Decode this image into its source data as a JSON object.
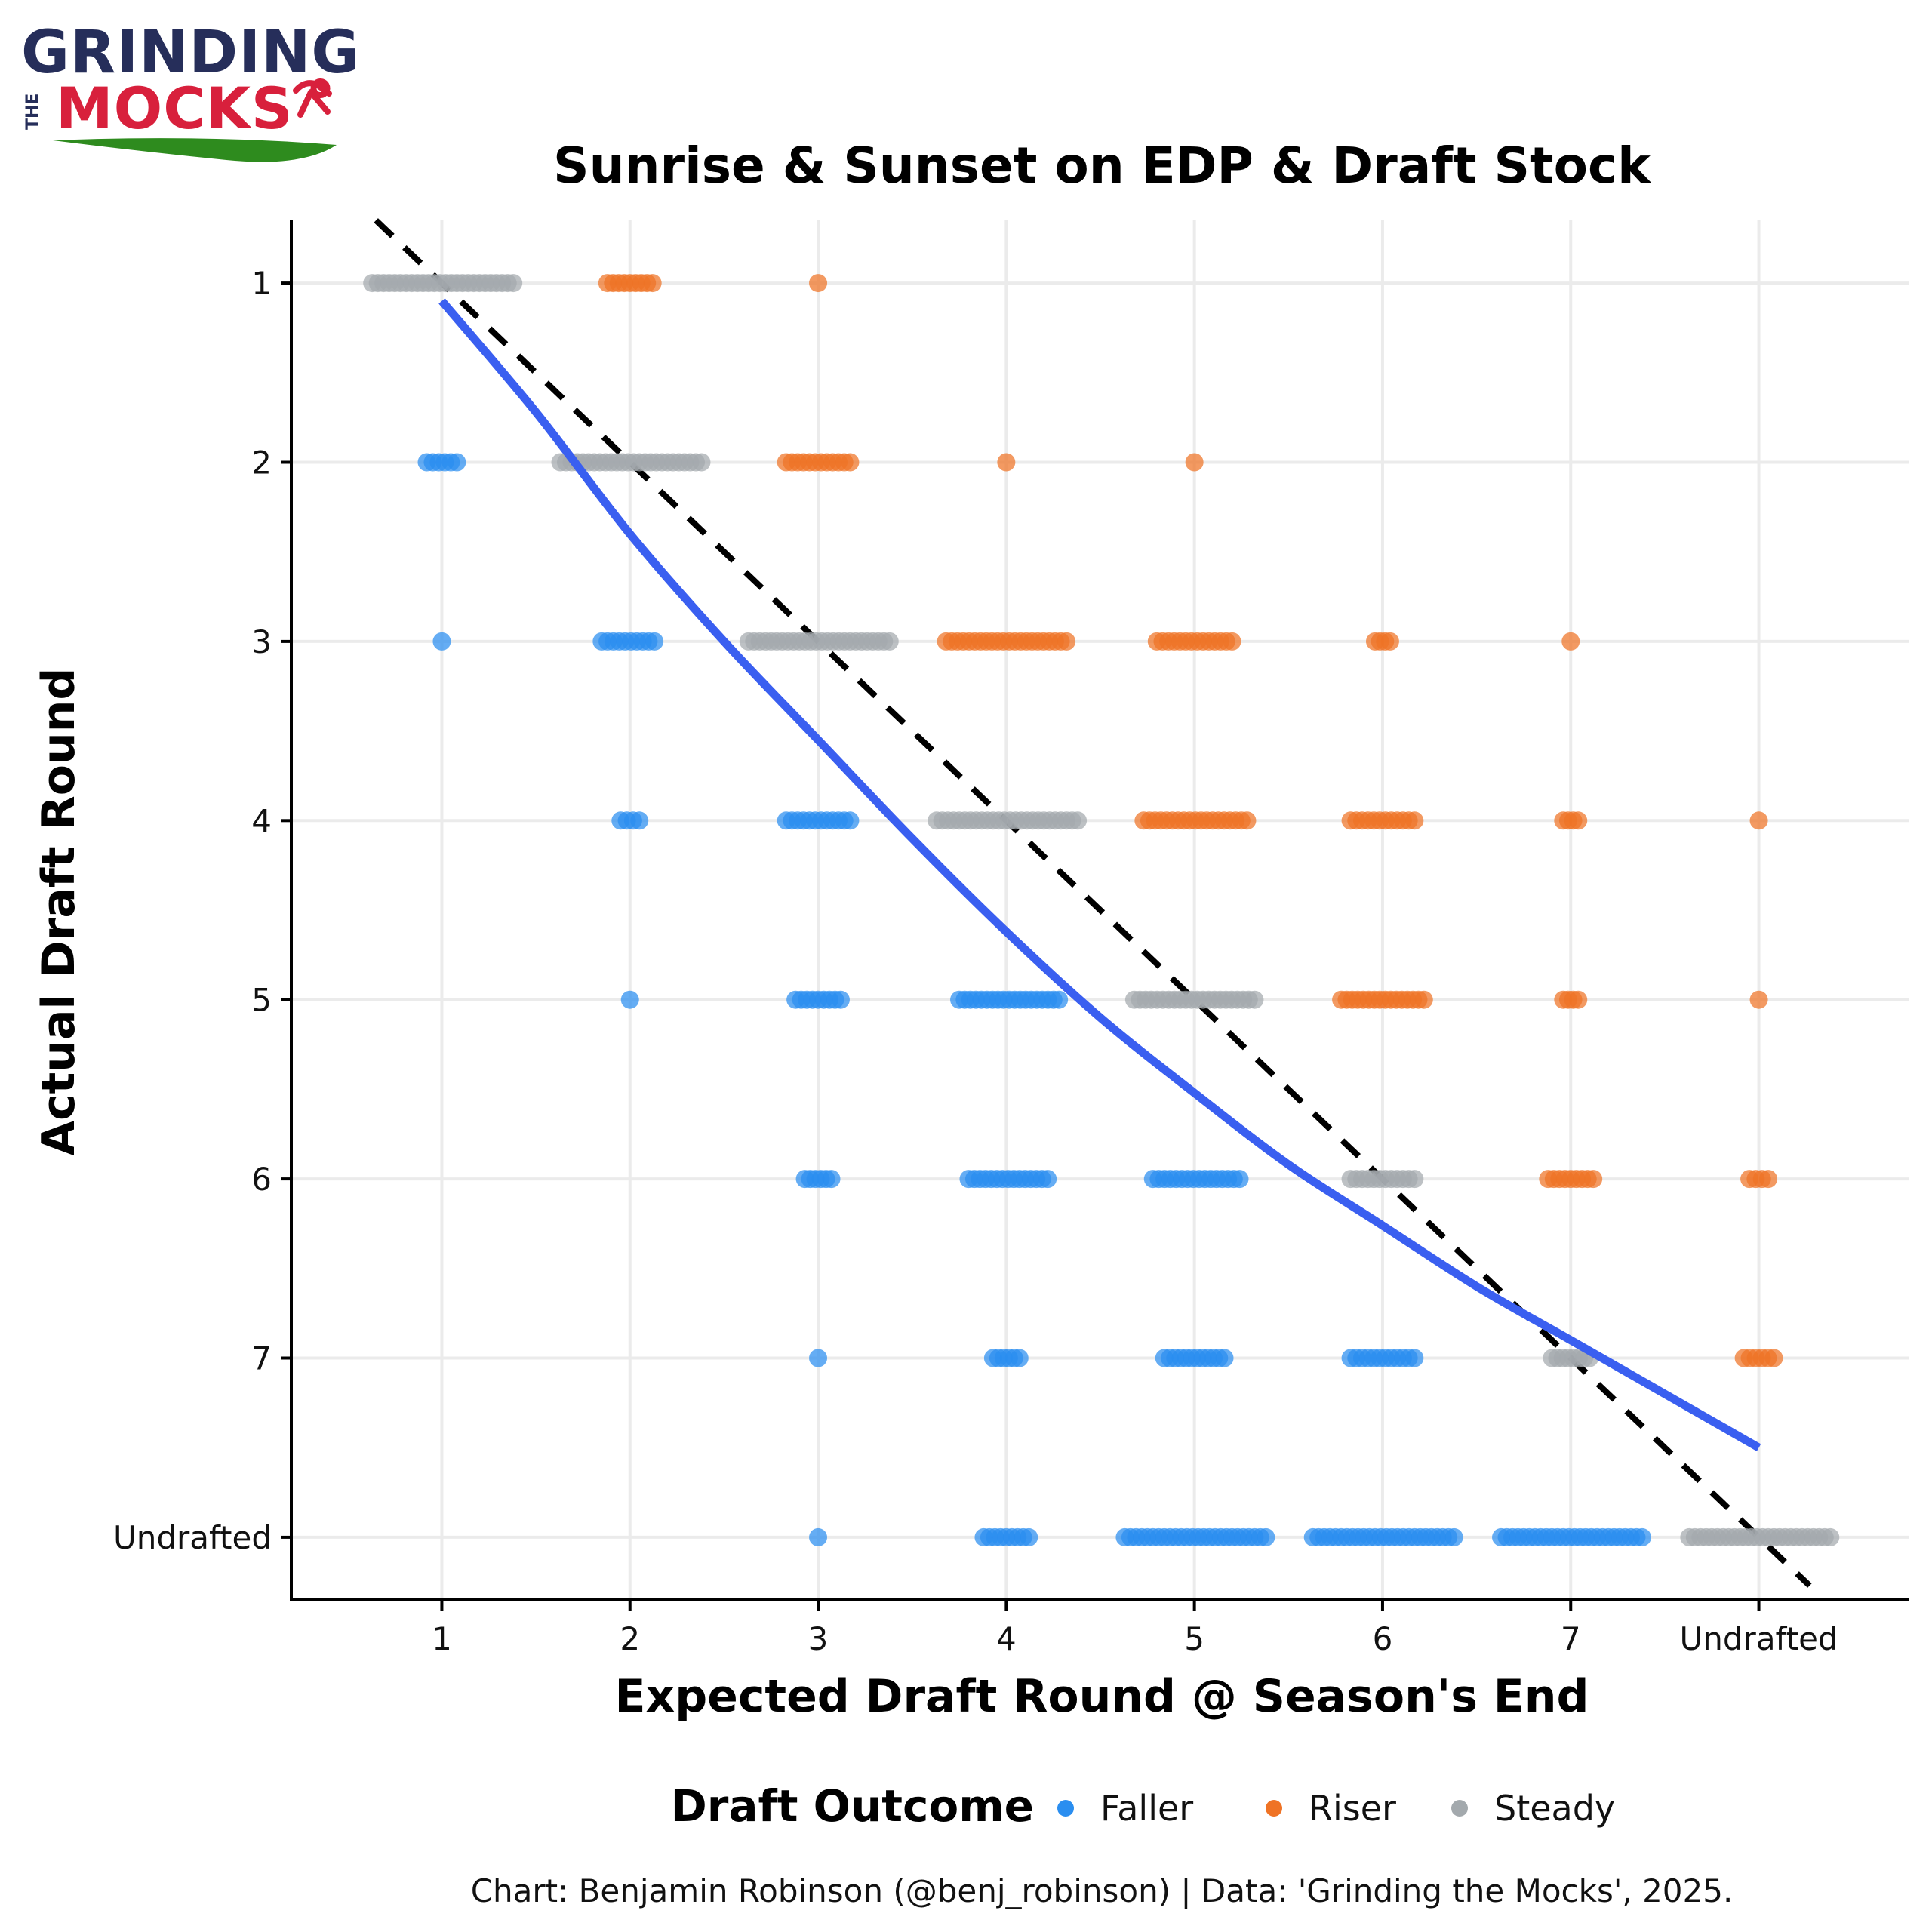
{
  "logo": {
    "line1": "GRINDING",
    "the": "THE",
    "line2": "MOCKS",
    "colors": {
      "navy": "#262e5a",
      "red": "#d8203c",
      "green": "#2e8b1e"
    }
  },
  "chart_data": {
    "type": "scatter",
    "title": "Sunrise & Sunset on EDP & Draft Stock",
    "xlabel": "Expected Draft Round @ Season's End",
    "ylabel": "Actual Draft Round",
    "x_ticks": [
      "1",
      "2",
      "3",
      "4",
      "5",
      "6",
      "7",
      "Undrafted"
    ],
    "y_ticks": [
      "1",
      "2",
      "3",
      "4",
      "5",
      "6",
      "7",
      "Undrafted"
    ],
    "xlim": [
      0.2,
      8.8
    ],
    "ylim": [
      0.65,
      8.35
    ],
    "y_reversed": true,
    "grid": true,
    "legend": {
      "title": "Draft Outcome",
      "placement": "bottom",
      "entries": [
        {
          "name": "Faller",
          "color": "#2a8ef0"
        },
        {
          "name": "Riser",
          "color": "#ef7325"
        },
        {
          "name": "Steady",
          "color": "#a3a9ad"
        }
      ]
    },
    "series": [
      {
        "name": "Faller",
        "color": "#2a8ef0",
        "clusters": [
          {
            "x": 1,
            "y": 2,
            "x_min": 0.92,
            "x_max": 1.08
          },
          {
            "x": 1,
            "y": 3,
            "x_min": 1.0,
            "x_max": 1.0
          },
          {
            "x": 2,
            "y": 3,
            "x_min": 1.85,
            "x_max": 2.13
          },
          {
            "x": 2,
            "y": 4,
            "x_min": 1.95,
            "x_max": 2.05
          },
          {
            "x": 3,
            "y": 4,
            "x_min": 2.83,
            "x_max": 3.17
          },
          {
            "x": 2,
            "y": 5,
            "x_min": 2.0,
            "x_max": 2.0
          },
          {
            "x": 3,
            "y": 5,
            "x_min": 2.88,
            "x_max": 3.12
          },
          {
            "x": 4,
            "y": 5,
            "x_min": 3.75,
            "x_max": 4.28
          },
          {
            "x": 3,
            "y": 6,
            "x_min": 2.93,
            "x_max": 3.07
          },
          {
            "x": 4,
            "y": 6,
            "x_min": 3.8,
            "x_max": 4.22
          },
          {
            "x": 5,
            "y": 6,
            "x_min": 4.78,
            "x_max": 5.24
          },
          {
            "x": 3,
            "y": 7,
            "x_min": 3.0,
            "x_max": 3.0
          },
          {
            "x": 4,
            "y": 7,
            "x_min": 3.93,
            "x_max": 4.07
          },
          {
            "x": 5,
            "y": 7,
            "x_min": 4.84,
            "x_max": 5.16
          },
          {
            "x": 6,
            "y": 7,
            "x_min": 5.83,
            "x_max": 6.17
          },
          {
            "x": 3,
            "y": 8,
            "x_min": 3.0,
            "x_max": 3.0
          },
          {
            "x": 4,
            "y": 8,
            "x_min": 3.88,
            "x_max": 4.12
          },
          {
            "x": 5,
            "y": 8,
            "x_min": 4.63,
            "x_max": 5.38
          },
          {
            "x": 6,
            "y": 8,
            "x_min": 5.63,
            "x_max": 6.38
          },
          {
            "x": 7,
            "y": 8,
            "x_min": 6.63,
            "x_max": 7.38
          }
        ]
      },
      {
        "name": "Riser",
        "color": "#ef7325",
        "clusters": [
          {
            "x": 2,
            "y": 1,
            "x_min": 1.88,
            "x_max": 2.12
          },
          {
            "x": 3,
            "y": 1,
            "x_min": 3.0,
            "x_max": 3.0
          },
          {
            "x": 3,
            "y": 2,
            "x_min": 2.83,
            "x_max": 3.17
          },
          {
            "x": 4,
            "y": 2,
            "x_min": 4.0,
            "x_max": 4.0
          },
          {
            "x": 5,
            "y": 2,
            "x_min": 5.0,
            "x_max": 5.0
          },
          {
            "x": 4,
            "y": 3,
            "x_min": 3.68,
            "x_max": 4.32
          },
          {
            "x": 5,
            "y": 3,
            "x_min": 4.8,
            "x_max": 5.2
          },
          {
            "x": 6,
            "y": 3,
            "x_min": 5.96,
            "x_max": 6.04
          },
          {
            "x": 7,
            "y": 3,
            "x_min": 7.0,
            "x_max": 7.0
          },
          {
            "x": 5,
            "y": 4,
            "x_min": 4.73,
            "x_max": 5.28
          },
          {
            "x": 6,
            "y": 4,
            "x_min": 5.83,
            "x_max": 6.17
          },
          {
            "x": 7,
            "y": 4,
            "x_min": 6.96,
            "x_max": 7.04
          },
          {
            "x": 8,
            "y": 4,
            "x_min": 8.0,
            "x_max": 8.0
          },
          {
            "x": 6,
            "y": 5,
            "x_min": 5.78,
            "x_max": 6.22
          },
          {
            "x": 7,
            "y": 5,
            "x_min": 6.96,
            "x_max": 7.04
          },
          {
            "x": 8,
            "y": 5,
            "x_min": 8.0,
            "x_max": 8.0
          },
          {
            "x": 7,
            "y": 6,
            "x_min": 6.88,
            "x_max": 7.12
          },
          {
            "x": 8,
            "y": 6,
            "x_min": 7.95,
            "x_max": 8.05
          },
          {
            "x": 8,
            "y": 7,
            "x_min": 7.92,
            "x_max": 8.08
          }
        ]
      },
      {
        "name": "Steady",
        "color": "#a3a9ad",
        "clusters": [
          {
            "x": 1,
            "y": 1,
            "x_min": 0.63,
            "x_max": 1.38
          },
          {
            "x": 2,
            "y": 2,
            "x_min": 1.63,
            "x_max": 2.38
          },
          {
            "x": 3,
            "y": 3,
            "x_min": 2.63,
            "x_max": 3.38
          },
          {
            "x": 4,
            "y": 4,
            "x_min": 3.63,
            "x_max": 4.38
          },
          {
            "x": 5,
            "y": 5,
            "x_min": 4.68,
            "x_max": 5.32
          },
          {
            "x": 6,
            "y": 6,
            "x_min": 5.83,
            "x_max": 6.17
          },
          {
            "x": 7,
            "y": 7,
            "x_min": 6.9,
            "x_max": 7.1
          },
          {
            "x": 8,
            "y": 8,
            "x_min": 7.63,
            "x_max": 8.38
          }
        ]
      }
    ],
    "smooth_trend": {
      "color": "#3a5ff0",
      "points": [
        [
          1.0,
          1.1
        ],
        [
          1.5,
          1.72
        ],
        [
          2.0,
          2.4
        ],
        [
          2.5,
          3.0
        ],
        [
          3.0,
          3.55
        ],
        [
          3.5,
          4.1
        ],
        [
          4.0,
          4.62
        ],
        [
          4.5,
          5.1
        ],
        [
          5.0,
          5.52
        ],
        [
          5.5,
          5.92
        ],
        [
          6.0,
          6.26
        ],
        [
          6.5,
          6.6
        ],
        [
          7.0,
          6.9
        ],
        [
          7.5,
          7.2
        ],
        [
          8.0,
          7.5
        ]
      ]
    },
    "reference_line": {
      "slope": 1,
      "intercept": 0,
      "style": "dashed",
      "color": "#000000"
    },
    "caption": "Chart: Benjamin Robinson (@benj_robinson) | Data: 'Grinding the Mocks', 2025."
  }
}
